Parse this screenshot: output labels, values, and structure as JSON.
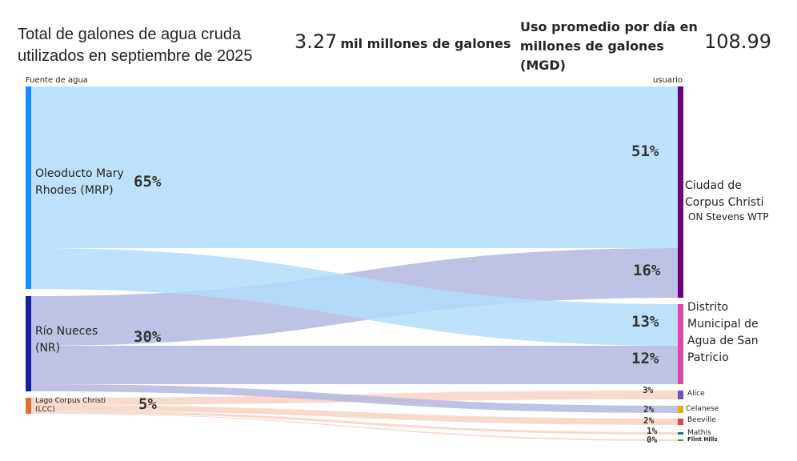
{
  "header": {
    "title": "Total de galones de agua cruda utilizados en septiembre de 2025",
    "total_value": "3.27",
    "total_unit": "mil millones de galones",
    "avg_label": "Uso promedio por día en millones de galones (MGD)",
    "avg_value": "108.99"
  },
  "diagram": {
    "source_header": "Fuente de agua",
    "target_header": "usuario",
    "sources": [
      {
        "id": "MRP",
        "label": "Oleoducto Mary Rhodes (MRP)",
        "pct": "65%",
        "color": "#118DFF",
        "flow_color": "#B3DCFC"
      },
      {
        "id": "NR",
        "label": "Río Nueces (NR)",
        "pct": "30%",
        "color": "#12239E",
        "flow_color": "#B3B8E0"
      },
      {
        "id": "LCC",
        "label": "Lago Corpus Christi (LCC)",
        "pct": "5%",
        "color": "#E66C37",
        "flow_color": "#F7D3C3"
      }
    ],
    "targets": [
      {
        "id": "CC",
        "label": "Ciudad de Corpus Christi",
        "sublabel": "ON Stevens WTP",
        "color": "#6B007B"
      },
      {
        "id": "SP",
        "label": "Distrito Municipal de Agua de San Patricio",
        "color": "#E044A7"
      },
      {
        "id": "Alice",
        "label": "Alice",
        "color": "#744EC2"
      },
      {
        "id": "Celanese",
        "label": "Celanese",
        "color": "#D9B300"
      },
      {
        "id": "Beeville",
        "label": "Beeville",
        "color": "#D64550"
      },
      {
        "id": "Mathis",
        "label": "Mathis",
        "color": "#197278"
      },
      {
        "id": "Flint",
        "label": "Flint Hills",
        "color": "#1AAB40"
      }
    ],
    "flows": [
      {
        "source": "MRP",
        "target": "CC",
        "pct": "51%"
      },
      {
        "source": "NR",
        "target": "CC",
        "pct": "16%"
      },
      {
        "source": "MRP",
        "target": "SP",
        "pct": "13%"
      },
      {
        "source": "NR",
        "target": "SP",
        "pct": "12%"
      },
      {
        "source": "LCC",
        "target": "Alice",
        "pct": "3%"
      },
      {
        "source": "NR",
        "target": "Celanese",
        "pct": "2%"
      },
      {
        "source": "LCC",
        "target": "Beeville",
        "pct": "2%"
      },
      {
        "source": "LCC",
        "target": "Mathis",
        "pct": "1%"
      },
      {
        "source": "LCC",
        "target": "Flint",
        "pct": "0%"
      }
    ]
  }
}
